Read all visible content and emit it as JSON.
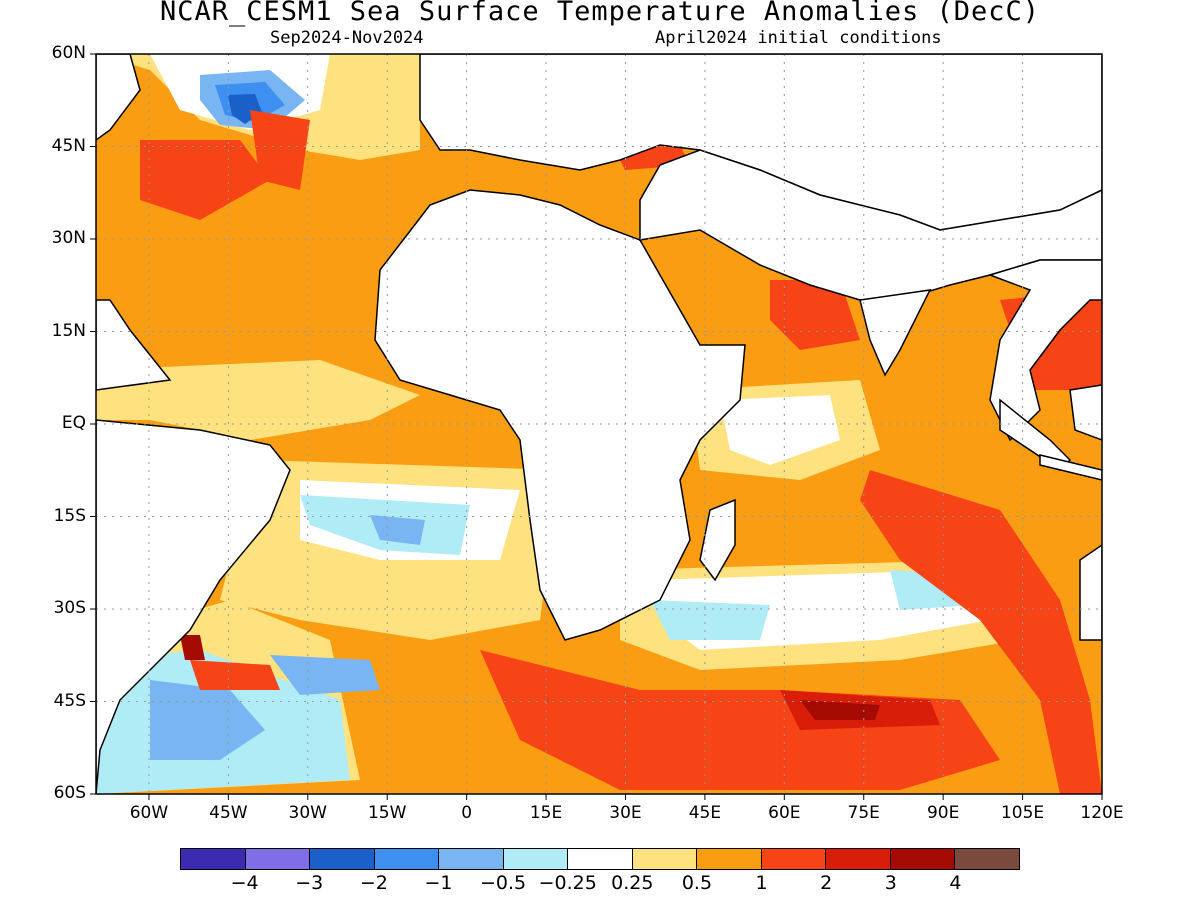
{
  "title": "NCAR_CESM1 Sea Surface Temperature Anomalies (DecC)",
  "subtitle_left": "Sep2024-Nov2024",
  "subtitle_right": "April2024 initial conditions",
  "lat_labels": [
    "60N",
    "45N",
    "30N",
    "15N",
    "EQ",
    "15S",
    "30S",
    "45S",
    "60S"
  ],
  "lon_labels": [
    "60W",
    "45W",
    "30W",
    "15W",
    "0",
    "15E",
    "30E",
    "45E",
    "60E",
    "75E",
    "90E",
    "105E",
    "120E"
  ],
  "colorbar": {
    "labels": [
      "−4",
      "−3",
      "−2",
      "−1",
      "−0.5",
      "−0.25",
      "0.25",
      "0.5",
      "1",
      "2",
      "3",
      "4"
    ],
    "colors": [
      "#3a2bb0",
      "#7f6ee8",
      "#1b5fc8",
      "#3d8ff0",
      "#79b5f2",
      "#b0ecf6",
      "#ffffff",
      "#fde27f",
      "#fb9d12",
      "#f64416",
      "#d81e08",
      "#a50b02",
      "#7a4a3c"
    ]
  }
}
